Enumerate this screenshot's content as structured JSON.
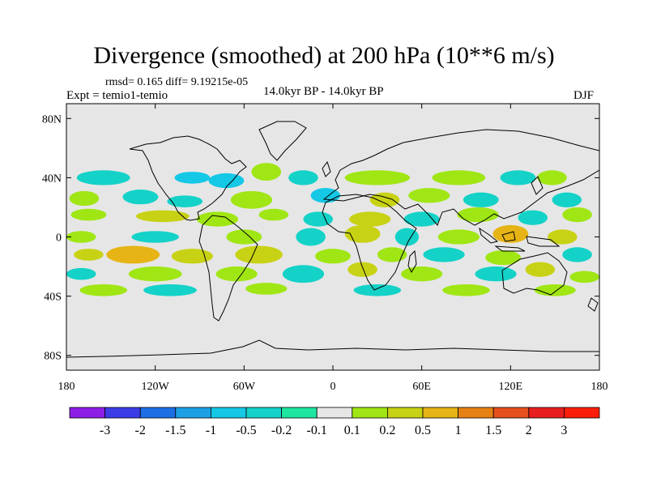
{
  "title": "Divergence (smoothed) at 200 hPa (10**6 m/s)",
  "stats": "rmsd= 0.165 diff= 9.19215e-05",
  "experiment": "Expt = temio1-temio",
  "period": "14.0kyr BP - 14.0kyr BP",
  "season": "DJF",
  "chart_data": {
    "type": "heatmap",
    "projection": "cylindrical-equidistant",
    "x_range": [
      -180,
      180
    ],
    "y_range": [
      -90,
      90
    ],
    "x_ticks": [
      {
        "value": -180,
        "label": "180"
      },
      {
        "value": -120,
        "label": "120W"
      },
      {
        "value": -60,
        "label": "60W"
      },
      {
        "value": 0,
        "label": "0"
      },
      {
        "value": 60,
        "label": "60E"
      },
      {
        "value": 120,
        "label": "120E"
      },
      {
        "value": 180,
        "label": "180"
      }
    ],
    "y_ticks": [
      {
        "value": 80,
        "label": "80N"
      },
      {
        "value": 40,
        "label": "40N"
      },
      {
        "value": 0,
        "label": "0"
      },
      {
        "value": -40,
        "label": "40S"
      },
      {
        "value": -80,
        "label": "80S"
      }
    ],
    "colorbar": {
      "labels": [
        "-3",
        "-2",
        "-1.5",
        "-1",
        "-0.5",
        "-0.2",
        "-0.1",
        "0.1",
        "0.2",
        "0.5",
        "1",
        "1.5",
        "2",
        "3"
      ],
      "colors": [
        "#8c1ee6",
        "#3c3ce6",
        "#1e6ee6",
        "#1ea0e6",
        "#14c8e6",
        "#14d2c8",
        "#1ee6a0",
        "#e6e6e6",
        "#a0e614",
        "#c8d214",
        "#e6b414",
        "#e68214",
        "#e6501e",
        "#e61e1e",
        "#fa1e0a"
      ]
    },
    "features": [
      {
        "lon": -155,
        "lat": 40,
        "rx": 18,
        "ry": 5,
        "level": 5
      },
      {
        "lon": -95,
        "lat": 40,
        "rx": 12,
        "ry": 4,
        "level": 4
      },
      {
        "lon": -72,
        "lat": 38,
        "rx": 12,
        "ry": 5,
        "level": 4
      },
      {
        "lon": -20,
        "lat": 40,
        "rx": 10,
        "ry": 5,
        "level": 5
      },
      {
        "lon": 30,
        "lat": 40,
        "rx": 22,
        "ry": 5,
        "level": 8
      },
      {
        "lon": 85,
        "lat": 40,
        "rx": 18,
        "ry": 5,
        "level": 8
      },
      {
        "lon": 125,
        "lat": 40,
        "rx": 12,
        "ry": 5,
        "level": 5
      },
      {
        "lon": 148,
        "lat": 40,
        "rx": 10,
        "ry": 5,
        "level": 8
      },
      {
        "lon": -45,
        "lat": 44,
        "rx": 10,
        "ry": 6,
        "level": 8
      },
      {
        "lon": -168,
        "lat": 26,
        "rx": 10,
        "ry": 5,
        "level": 8
      },
      {
        "lon": -130,
        "lat": 27,
        "rx": 12,
        "ry": 5,
        "level": 5
      },
      {
        "lon": -100,
        "lat": 24,
        "rx": 12,
        "ry": 4,
        "level": 5
      },
      {
        "lon": -55,
        "lat": 25,
        "rx": 14,
        "ry": 6,
        "level": 8
      },
      {
        "lon": -5,
        "lat": 28,
        "rx": 10,
        "ry": 5,
        "level": 4
      },
      {
        "lon": 35,
        "lat": 25,
        "rx": 10,
        "ry": 5,
        "level": 9
      },
      {
        "lon": 65,
        "lat": 28,
        "rx": 14,
        "ry": 5,
        "level": 8
      },
      {
        "lon": 100,
        "lat": 25,
        "rx": 12,
        "ry": 5,
        "level": 5
      },
      {
        "lon": 158,
        "lat": 25,
        "rx": 10,
        "ry": 5,
        "level": 5
      },
      {
        "lon": -165,
        "lat": 15,
        "rx": 12,
        "ry": 4,
        "level": 8
      },
      {
        "lon": -115,
        "lat": 14,
        "rx": 18,
        "ry": 4,
        "level": 9
      },
      {
        "lon": -78,
        "lat": 12,
        "rx": 14,
        "ry": 5,
        "level": 8
      },
      {
        "lon": -40,
        "lat": 15,
        "rx": 10,
        "ry": 4,
        "level": 8
      },
      {
        "lon": -10,
        "lat": 12,
        "rx": 10,
        "ry": 5,
        "level": 5
      },
      {
        "lon": 25,
        "lat": 12,
        "rx": 14,
        "ry": 5,
        "level": 9
      },
      {
        "lon": 60,
        "lat": 12,
        "rx": 12,
        "ry": 5,
        "level": 5
      },
      {
        "lon": 98,
        "lat": 15,
        "rx": 14,
        "ry": 5,
        "level": 8
      },
      {
        "lon": 135,
        "lat": 13,
        "rx": 10,
        "ry": 5,
        "level": 5
      },
      {
        "lon": 165,
        "lat": 15,
        "rx": 10,
        "ry": 5,
        "level": 8
      },
      {
        "lon": -170,
        "lat": 0,
        "rx": 10,
        "ry": 4,
        "level": 8
      },
      {
        "lon": -120,
        "lat": 0,
        "rx": 16,
        "ry": 4,
        "level": 5
      },
      {
        "lon": -60,
        "lat": 0,
        "rx": 12,
        "ry": 5,
        "level": 8
      },
      {
        "lon": -15,
        "lat": 0,
        "rx": 10,
        "ry": 6,
        "level": 5
      },
      {
        "lon": 20,
        "lat": 2,
        "rx": 12,
        "ry": 6,
        "level": 9
      },
      {
        "lon": 50,
        "lat": 0,
        "rx": 8,
        "ry": 6,
        "level": 5
      },
      {
        "lon": 85,
        "lat": 0,
        "rx": 14,
        "ry": 5,
        "level": 8
      },
      {
        "lon": 120,
        "lat": 2,
        "rx": 12,
        "ry": 6,
        "level": 10
      },
      {
        "lon": 155,
        "lat": 0,
        "rx": 10,
        "ry": 5,
        "level": 9
      },
      {
        "lon": -165,
        "lat": -12,
        "rx": 10,
        "ry": 4,
        "level": 9
      },
      {
        "lon": -135,
        "lat": -12,
        "rx": 18,
        "ry": 6,
        "level": 10
      },
      {
        "lon": -95,
        "lat": -13,
        "rx": 14,
        "ry": 5,
        "level": 9
      },
      {
        "lon": -50,
        "lat": -12,
        "rx": 16,
        "ry": 6,
        "level": 9
      },
      {
        "lon": 0,
        "lat": -13,
        "rx": 12,
        "ry": 5,
        "level": 8
      },
      {
        "lon": 40,
        "lat": -12,
        "rx": 10,
        "ry": 5,
        "level": 8
      },
      {
        "lon": 75,
        "lat": -12,
        "rx": 14,
        "ry": 5,
        "level": 5
      },
      {
        "lon": 115,
        "lat": -14,
        "rx": 12,
        "ry": 5,
        "level": 8
      },
      {
        "lon": 165,
        "lat": -12,
        "rx": 10,
        "ry": 5,
        "level": 5
      },
      {
        "lon": -170,
        "lat": -25,
        "rx": 10,
        "ry": 4,
        "level": 5
      },
      {
        "lon": -120,
        "lat": -25,
        "rx": 18,
        "ry": 5,
        "level": 8
      },
      {
        "lon": -65,
        "lat": -25,
        "rx": 14,
        "ry": 5,
        "level": 8
      },
      {
        "lon": -20,
        "lat": -25,
        "rx": 14,
        "ry": 6,
        "level": 5
      },
      {
        "lon": 20,
        "lat": -22,
        "rx": 10,
        "ry": 5,
        "level": 9
      },
      {
        "lon": 60,
        "lat": -25,
        "rx": 14,
        "ry": 5,
        "level": 8
      },
      {
        "lon": 110,
        "lat": -25,
        "rx": 14,
        "ry": 5,
        "level": 5
      },
      {
        "lon": 140,
        "lat": -22,
        "rx": 10,
        "ry": 5,
        "level": 9
      },
      {
        "lon": 170,
        "lat": -27,
        "rx": 10,
        "ry": 4,
        "level": 8
      },
      {
        "lon": -155,
        "lat": -36,
        "rx": 16,
        "ry": 4,
        "level": 8
      },
      {
        "lon": -110,
        "lat": -36,
        "rx": 18,
        "ry": 4,
        "level": 5
      },
      {
        "lon": -45,
        "lat": -35,
        "rx": 14,
        "ry": 4,
        "level": 8
      },
      {
        "lon": 30,
        "lat": -36,
        "rx": 16,
        "ry": 4,
        "level": 5
      },
      {
        "lon": 90,
        "lat": -36,
        "rx": 16,
        "ry": 4,
        "level": 8
      },
      {
        "lon": 150,
        "lat": -36,
        "rx": 14,
        "ry": 4,
        "level": 8
      }
    ]
  }
}
